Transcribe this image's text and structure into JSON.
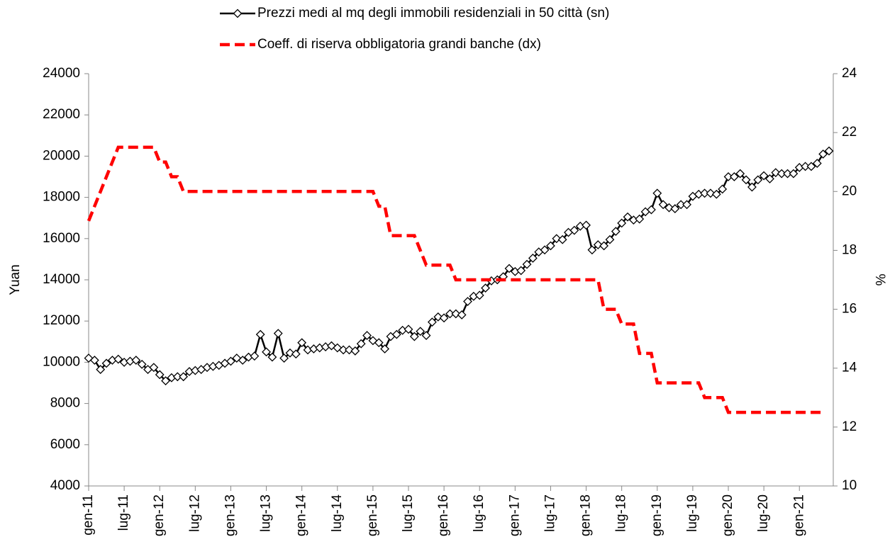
{
  "chart_data": {
    "type": "line",
    "categories": [
      "gen-11",
      null,
      null,
      null,
      null,
      null,
      "lug-11",
      null,
      null,
      null,
      null,
      null,
      "gen-12",
      null,
      null,
      null,
      null,
      null,
      "lug-12",
      null,
      null,
      null,
      null,
      null,
      "gen-13",
      null,
      null,
      null,
      null,
      null,
      "lug-13",
      null,
      null,
      null,
      null,
      null,
      "gen-14",
      null,
      null,
      null,
      null,
      null,
      "lug-14",
      null,
      null,
      null,
      null,
      null,
      "gen-15",
      null,
      null,
      null,
      null,
      null,
      "lug-15",
      null,
      null,
      null,
      null,
      null,
      "gen-16",
      null,
      null,
      null,
      null,
      null,
      "lug-16",
      null,
      null,
      null,
      null,
      null,
      "gen-17",
      null,
      null,
      null,
      null,
      null,
      "lug-17",
      null,
      null,
      null,
      null,
      null,
      "gen-18",
      null,
      null,
      null,
      null,
      null,
      "lug-18",
      null,
      null,
      null,
      null,
      null,
      "gen-19",
      null,
      null,
      null,
      null,
      null,
      "lug-19",
      null,
      null,
      null,
      null,
      null,
      "gen-20",
      null,
      null,
      null,
      null,
      null,
      "lug-20",
      null,
      null,
      null,
      null,
      null,
      "gen-21",
      null,
      null,
      null,
      null,
      null
    ],
    "series": [
      {
        "name": "Prezzi medi al mq degli immobili residenziali in 50 città (sn)",
        "color": "#000000",
        "marker": "diamond",
        "dashed": false,
        "values": [
          10200,
          10100,
          9650,
          9950,
          10100,
          10150,
          10000,
          10050,
          10100,
          9900,
          9650,
          9750,
          9400,
          9100,
          9250,
          9300,
          9300,
          9550,
          9600,
          9650,
          9750,
          9800,
          9850,
          9950,
          10050,
          10200,
          10100,
          10250,
          10300,
          11350,
          10500,
          10250,
          11400,
          10200,
          10450,
          10400,
          10950,
          10600,
          10650,
          10700,
          10750,
          10800,
          10700,
          10600,
          10600,
          10550,
          10900,
          11300,
          11050,
          10950,
          10650,
          11250,
          11350,
          11550,
          11600,
          11250,
          11500,
          11300,
          11950,
          12200,
          12150,
          12350,
          12350,
          12300,
          12950,
          13200,
          13250,
          13600,
          13950,
          14000,
          14150,
          14550,
          14400,
          14450,
          14750,
          15050,
          15350,
          15450,
          15650,
          16000,
          15950,
          16300,
          16400,
          16600,
          16650,
          15450,
          15700,
          15650,
          15950,
          16350,
          16750,
          17050,
          16900,
          16950,
          17300,
          17400,
          18200,
          17650,
          17500,
          17450,
          17650,
          17650,
          18050,
          18150,
          18200,
          18200,
          18150,
          18400,
          19000,
          19000,
          19150,
          18850,
          18500,
          18850,
          19050,
          18900,
          19200,
          19150,
          19150,
          19150,
          19450,
          19500,
          19500,
          19650,
          20100,
          20250
        ]
      },
      {
        "name": "Coeff. di riserva obbligatoria grandi banche (dx)",
        "color": "#ff0000",
        "marker": "none",
        "dashed": true,
        "axis": "y2",
        "values": [
          19,
          19.5,
          20,
          20.5,
          21,
          21.5,
          21.5,
          21.5,
          21.5,
          21.5,
          21.5,
          21.5,
          21,
          21,
          20.5,
          20.5,
          20,
          20,
          20,
          20,
          20,
          20,
          20,
          20,
          20,
          20,
          20,
          20,
          20,
          20,
          20,
          20,
          20,
          20,
          20,
          20,
          20,
          20,
          20,
          20,
          20,
          20,
          20,
          20,
          20,
          20,
          20,
          20,
          20,
          19.5,
          19.5,
          18.5,
          18.5,
          18.5,
          18.5,
          18.5,
          18,
          17.5,
          17.5,
          17.5,
          17.5,
          17.5,
          17,
          17,
          17,
          17,
          17,
          17,
          17,
          17,
          17,
          17,
          17,
          17,
          17,
          17,
          17,
          17,
          17,
          17,
          17,
          17,
          17,
          17,
          17,
          17,
          17,
          16,
          16,
          16,
          15.5,
          15.5,
          15.5,
          14.5,
          14.5,
          14.5,
          13.5,
          13.5,
          13.5,
          13.5,
          13.5,
          13.5,
          13.5,
          13.5,
          13,
          13,
          13,
          13,
          12.5,
          12.5,
          12.5,
          12.5,
          12.5,
          12.5,
          12.5,
          12.5,
          12.5,
          12.5,
          12.5,
          12.5,
          12.5,
          12.5,
          12.5,
          12.5,
          12.5,
          null
        ]
      }
    ],
    "y_label": "Yuan",
    "y2_label": "%",
    "ylim": [
      4000,
      24000
    ],
    "yticks": [
      4000,
      6000,
      8000,
      10000,
      12000,
      14000,
      16000,
      18000,
      20000,
      22000,
      24000
    ],
    "y2lim": [
      10,
      24
    ],
    "y2ticks": [
      10,
      12,
      14,
      16,
      18,
      20,
      22,
      24
    ],
    "grid": false,
    "legend": "top"
  }
}
